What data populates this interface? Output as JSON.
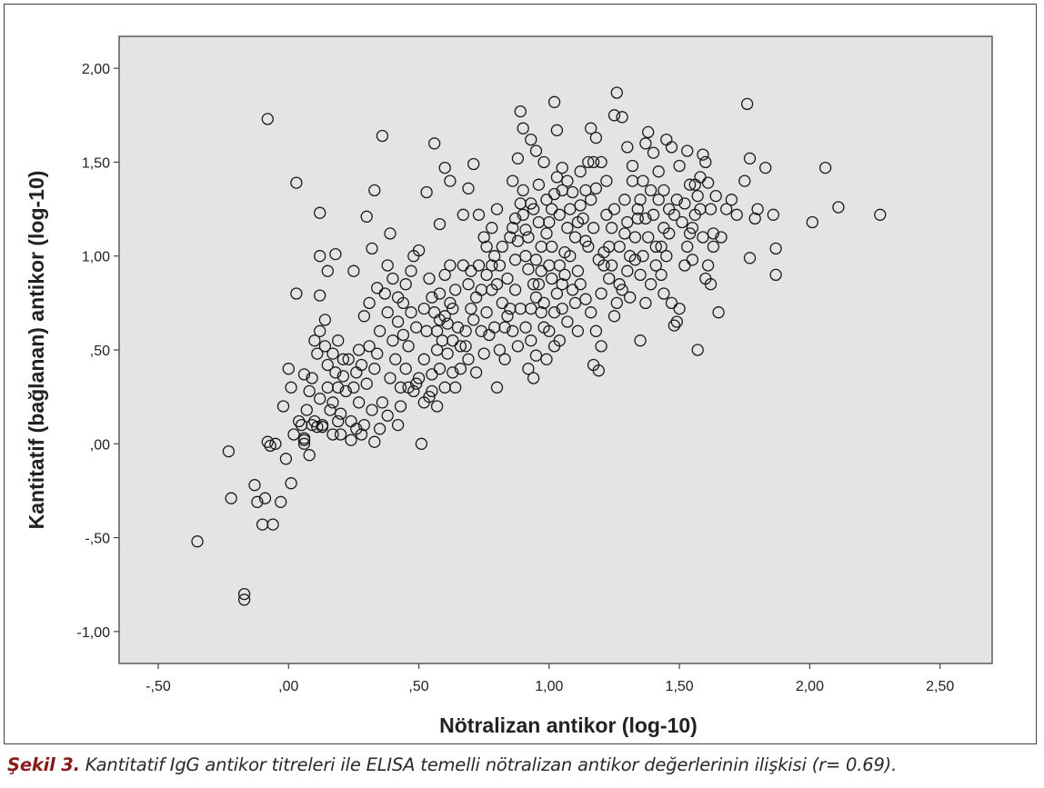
{
  "figure": {
    "caption_label": "Şekil 3.",
    "caption_text": " Kantitatif IgG antikor titreleri ile ELISA temelli nötralizan antikor değerlerinin ilişkisi (r= 0.69)."
  },
  "chart_data": {
    "type": "scatter",
    "title": "",
    "xlabel": "Nötralizan antikor (log-10)",
    "ylabel": "Kantitatif (bağlanan) antikor (log-10)",
    "xlim": [
      -0.65,
      2.7
    ],
    "ylim": [
      -1.17,
      2.17
    ],
    "x_ticks": [
      -0.5,
      0.0,
      0.5,
      1.0,
      1.5,
      2.0,
      2.5
    ],
    "x_tick_labels": [
      "-,50",
      ",00",
      ",50",
      "1,00",
      "1,50",
      "2,00",
      "2,50"
    ],
    "y_ticks": [
      -1.0,
      -0.5,
      0.0,
      0.5,
      1.0,
      1.5,
      2.0
    ],
    "y_tick_labels": [
      "-1,00",
      "-,50",
      ",00",
      ",50",
      "1,00",
      "1,50",
      "2,00"
    ],
    "grid": false,
    "legend": "none",
    "colors": {
      "plot_background": "#e4e4e4",
      "marker_stroke": "#1a1a1a",
      "frame": "#444444"
    },
    "points": [
      [
        -0.35,
        -0.52
      ],
      [
        -0.17,
        -0.8
      ],
      [
        -0.17,
        -0.83
      ],
      [
        -0.23,
        -0.04
      ],
      [
        -0.22,
        -0.29
      ],
      [
        -0.13,
        -0.22
      ],
      [
        -0.12,
        -0.31
      ],
      [
        -0.09,
        -0.29
      ],
      [
        -0.1,
        -0.43
      ],
      [
        -0.06,
        -0.43
      ],
      [
        -0.03,
        -0.31
      ],
      [
        -0.01,
        -0.08
      ],
      [
        0.01,
        -0.21
      ],
      [
        -0.08,
        0.01
      ],
      [
        -0.07,
        -0.01
      ],
      [
        -0.05,
        0.0
      ],
      [
        -0.08,
        1.73
      ],
      [
        0.03,
        1.39
      ],
      [
        0.06,
        0.03
      ],
      [
        0.08,
        -0.06
      ],
      [
        0.06,
        0.0
      ],
      [
        0.04,
        0.12
      ],
      [
        0.02,
        0.05
      ],
      [
        0.09,
        0.1
      ],
      [
        0.1,
        0.12
      ],
      [
        0.13,
        0.09
      ],
      [
        0.12,
        0.24
      ],
      [
        0.15,
        0.3
      ],
      [
        0.17,
        0.22
      ],
      [
        0.2,
        0.16
      ],
      [
        -0.02,
        0.2
      ],
      [
        0.01,
        0.3
      ],
      [
        0.0,
        0.4
      ],
      [
        0.06,
        0.37
      ],
      [
        0.03,
        0.8
      ],
      [
        0.12,
        0.79
      ],
      [
        0.12,
        1.0
      ],
      [
        0.15,
        0.92
      ],
      [
        0.18,
        1.01
      ],
      [
        0.12,
        1.23
      ],
      [
        0.1,
        0.55
      ],
      [
        0.14,
        0.66
      ],
      [
        0.17,
        0.48
      ],
      [
        0.19,
        0.55
      ],
      [
        0.21,
        0.36
      ],
      [
        0.23,
        0.45
      ],
      [
        0.25,
        0.3
      ],
      [
        0.27,
        0.5
      ],
      [
        0.29,
        0.68
      ],
      [
        0.31,
        0.75
      ],
      [
        0.25,
        0.92
      ],
      [
        0.32,
        1.04
      ],
      [
        0.3,
        1.21
      ],
      [
        0.33,
        1.35
      ],
      [
        0.36,
        1.64
      ],
      [
        0.39,
        1.12
      ],
      [
        0.34,
        0.83
      ],
      [
        0.38,
        0.7
      ],
      [
        0.4,
        0.55
      ],
      [
        0.42,
        0.65
      ],
      [
        0.44,
        0.75
      ],
      [
        0.45,
        0.85
      ],
      [
        0.47,
        0.92
      ],
      [
        0.48,
        1.0
      ],
      [
        0.5,
        1.03
      ],
      [
        0.41,
        0.45
      ],
      [
        0.43,
        0.3
      ],
      [
        0.45,
        0.4
      ],
      [
        0.48,
        0.28
      ],
      [
        0.5,
        0.35
      ],
      [
        0.52,
        0.45
      ],
      [
        0.55,
        0.37
      ],
      [
        0.57,
        0.5
      ],
      [
        0.53,
        0.6
      ],
      [
        0.56,
        0.7
      ],
      [
        0.58,
        0.8
      ],
      [
        0.6,
        0.9
      ],
      [
        0.62,
        0.95
      ],
      [
        0.63,
        0.72
      ],
      [
        0.65,
        0.62
      ],
      [
        0.51,
        0.0
      ],
      [
        0.54,
        0.25
      ],
      [
        0.57,
        0.2
      ],
      [
        0.6,
        0.3
      ],
      [
        0.63,
        0.38
      ],
      [
        0.66,
        0.52
      ],
      [
        0.68,
        0.6
      ],
      [
        0.7,
        0.72
      ],
      [
        0.72,
        0.78
      ],
      [
        0.74,
        0.82
      ],
      [
        0.53,
        1.34
      ],
      [
        0.56,
        1.6
      ],
      [
        0.58,
        1.17
      ],
      [
        0.6,
        1.47
      ],
      [
        0.62,
        1.4
      ],
      [
        0.67,
        1.22
      ],
      [
        0.69,
        1.36
      ],
      [
        0.71,
        1.49
      ],
      [
        0.73,
        1.22
      ],
      [
        0.75,
        1.1
      ],
      [
        0.76,
        0.9
      ],
      [
        0.78,
        0.95
      ],
      [
        0.79,
        1.0
      ],
      [
        0.8,
        0.85
      ],
      [
        0.82,
        0.75
      ],
      [
        0.84,
        0.68
      ],
      [
        0.86,
        0.6
      ],
      [
        0.88,
        0.52
      ],
      [
        0.8,
        0.3
      ],
      [
        0.83,
        0.45
      ],
      [
        0.85,
        1.1
      ],
      [
        0.87,
        1.2
      ],
      [
        0.89,
        1.28
      ],
      [
        0.9,
        1.35
      ],
      [
        0.86,
        1.4
      ],
      [
        0.88,
        1.52
      ],
      [
        0.9,
        1.68
      ],
      [
        0.89,
        1.77
      ],
      [
        0.93,
        1.62
      ],
      [
        0.95,
        1.56
      ],
      [
        0.91,
        1.0
      ],
      [
        0.92,
        0.93
      ],
      [
        0.94,
        0.85
      ],
      [
        0.95,
        0.78
      ],
      [
        0.97,
        0.7
      ],
      [
        0.98,
        0.62
      ],
      [
        0.93,
        0.55
      ],
      [
        0.95,
        0.47
      ],
      [
        0.92,
        0.4
      ],
      [
        0.94,
        0.35
      ],
      [
        0.97,
        1.05
      ],
      [
        0.99,
        1.12
      ],
      [
        1.0,
        1.18
      ],
      [
        1.01,
        1.25
      ],
      [
        1.02,
        1.33
      ],
      [
        1.03,
        1.42
      ],
      [
        1.02,
        1.82
      ],
      [
        1.03,
        1.67
      ],
      [
        1.05,
        1.47
      ],
      [
        1.0,
        0.95
      ],
      [
        1.01,
        0.88
      ],
      [
        1.03,
        0.8
      ],
      [
        1.05,
        0.72
      ],
      [
        1.07,
        0.65
      ],
      [
        1.0,
        0.6
      ],
      [
        1.02,
        0.52
      ],
      [
        0.99,
        0.45
      ],
      [
        1.04,
        0.55
      ],
      [
        1.06,
        0.9
      ],
      [
        1.08,
        1.0
      ],
      [
        1.1,
        1.1
      ],
      [
        1.11,
        1.18
      ],
      [
        1.12,
        1.27
      ],
      [
        1.14,
        1.35
      ],
      [
        1.15,
        1.5
      ],
      [
        1.16,
        1.68
      ],
      [
        1.18,
        1.63
      ],
      [
        1.2,
        1.5
      ],
      [
        1.22,
        1.4
      ],
      [
        1.12,
        0.85
      ],
      [
        1.14,
        0.77
      ],
      [
        1.16,
        0.7
      ],
      [
        1.18,
        0.6
      ],
      [
        1.17,
        0.42
      ],
      [
        1.19,
        0.39
      ],
      [
        1.2,
        0.52
      ],
      [
        1.21,
        0.95
      ],
      [
        1.23,
        1.05
      ],
      [
        1.24,
        1.15
      ],
      [
        1.25,
        1.25
      ],
      [
        1.26,
        1.87
      ],
      [
        1.25,
        1.75
      ],
      [
        1.28,
        1.74
      ],
      [
        1.3,
        1.58
      ],
      [
        1.32,
        1.48
      ],
      [
        1.26,
        0.75
      ],
      [
        1.28,
        0.82
      ],
      [
        1.3,
        0.92
      ],
      [
        1.31,
        1.0
      ],
      [
        1.33,
        1.1
      ],
      [
        1.34,
        1.2
      ],
      [
        1.35,
        1.3
      ],
      [
        1.36,
        1.4
      ],
      [
        1.37,
        1.6
      ],
      [
        1.38,
        1.66
      ],
      [
        1.4,
        1.55
      ],
      [
        1.42,
        1.45
      ],
      [
        1.35,
        0.55
      ],
      [
        1.37,
        0.75
      ],
      [
        1.39,
        0.85
      ],
      [
        1.41,
        0.95
      ],
      [
        1.43,
        1.05
      ],
      [
        1.44,
        1.15
      ],
      [
        1.46,
        1.25
      ],
      [
        1.45,
        1.62
      ],
      [
        1.47,
        1.58
      ],
      [
        1.5,
        1.48
      ],
      [
        1.44,
        1.35
      ],
      [
        1.48,
        0.63
      ],
      [
        1.49,
        0.65
      ],
      [
        1.5,
        0.72
      ],
      [
        1.47,
        0.75
      ],
      [
        1.52,
        0.95
      ],
      [
        1.53,
        1.05
      ],
      [
        1.55,
        1.15
      ],
      [
        1.56,
        1.22
      ],
      [
        1.57,
        1.32
      ],
      [
        1.58,
        1.42
      ],
      [
        1.6,
        1.5
      ],
      [
        1.53,
        1.56
      ],
      [
        1.57,
        0.5
      ],
      [
        1.6,
        0.88
      ],
      [
        1.62,
        0.85
      ],
      [
        1.63,
        1.05
      ],
      [
        1.65,
        0.7
      ],
      [
        1.66,
        1.1
      ],
      [
        1.68,
        1.25
      ],
      [
        1.7,
        1.3
      ],
      [
        1.72,
        1.22
      ],
      [
        1.75,
        1.4
      ],
      [
        1.76,
        1.81
      ],
      [
        1.77,
        1.52
      ],
      [
        1.79,
        1.2
      ],
      [
        1.8,
        1.25
      ],
      [
        1.77,
        0.99
      ],
      [
        1.83,
        1.47
      ],
      [
        1.86,
        1.22
      ],
      [
        1.87,
        1.04
      ],
      [
        1.87,
        0.9
      ],
      [
        2.01,
        1.18
      ],
      [
        2.06,
        1.47
      ],
      [
        2.11,
        1.26
      ],
      [
        2.27,
        1.22
      ],
      [
        1.59,
        1.54
      ],
      [
        1.61,
        1.39
      ],
      [
        1.63,
        1.12
      ],
      [
        1.54,
        1.38
      ],
      [
        1.42,
        1.3
      ],
      [
        1.38,
        1.1
      ],
      [
        1.33,
        0.98
      ],
      [
        1.29,
        1.12
      ],
      [
        1.23,
        0.88
      ],
      [
        1.19,
        0.98
      ],
      [
        1.15,
        1.05
      ],
      [
        1.11,
        0.92
      ],
      [
        1.09,
        0.82
      ],
      [
        1.07,
        1.15
      ],
      [
        1.04,
        1.22
      ],
      [
        1.01,
        1.05
      ],
      [
        0.97,
        0.92
      ],
      [
        0.96,
        1.18
      ],
      [
        0.93,
        1.28
      ],
      [
        0.91,
        1.14
      ],
      [
        0.87,
        0.98
      ],
      [
        0.84,
        0.88
      ],
      [
        0.81,
        0.95
      ],
      [
        0.78,
        0.82
      ],
      [
        0.76,
        0.7
      ],
      [
        0.74,
        0.6
      ],
      [
        0.71,
        0.66
      ],
      [
        0.69,
        0.85
      ],
      [
        0.67,
        0.95
      ],
      [
        0.64,
        0.82
      ],
      [
        0.62,
        0.75
      ],
      [
        0.61,
        0.64
      ],
      [
        0.59,
        0.55
      ],
      [
        0.58,
        0.66
      ],
      [
        0.55,
        0.78
      ],
      [
        0.54,
        0.88
      ],
      [
        0.52,
        0.72
      ],
      [
        0.49,
        0.62
      ],
      [
        0.47,
        0.7
      ],
      [
        0.46,
        0.52
      ],
      [
        0.44,
        0.58
      ],
      [
        0.42,
        0.78
      ],
      [
        0.4,
        0.88
      ],
      [
        0.38,
        0.95
      ],
      [
        0.37,
        0.8
      ],
      [
        0.35,
        0.6
      ],
      [
        0.34,
        0.48
      ],
      [
        0.33,
        0.4
      ],
      [
        0.31,
        0.52
      ],
      [
        0.3,
        0.32
      ],
      [
        0.28,
        0.42
      ],
      [
        0.27,
        0.22
      ],
      [
        0.26,
        0.38
      ],
      [
        0.24,
        0.12
      ],
      [
        0.22,
        0.28
      ],
      [
        0.21,
        0.45
      ],
      [
        0.19,
        0.3
      ],
      [
        0.18,
        0.38
      ],
      [
        0.16,
        0.18
      ],
      [
        0.15,
        0.42
      ],
      [
        0.14,
        0.52
      ],
      [
        0.12,
        0.6
      ],
      [
        0.11,
        0.48
      ],
      [
        0.09,
        0.35
      ],
      [
        0.08,
        0.28
      ],
      [
        0.07,
        0.18
      ],
      [
        0.05,
        0.1
      ],
      [
        0.13,
        0.1
      ],
      [
        0.2,
        0.05
      ],
      [
        0.26,
        0.08
      ],
      [
        0.29,
        0.1
      ],
      [
        0.33,
        0.01
      ],
      [
        0.36,
        0.22
      ],
      [
        0.39,
        0.35
      ],
      [
        0.43,
        0.2
      ],
      [
        0.46,
        0.3
      ],
      [
        0.49,
        0.32
      ],
      [
        0.52,
        0.22
      ],
      [
        0.55,
        0.28
      ],
      [
        0.58,
        0.4
      ],
      [
        0.61,
        0.48
      ],
      [
        0.64,
        0.3
      ],
      [
        0.66,
        0.4
      ],
      [
        0.69,
        0.45
      ],
      [
        0.72,
        0.38
      ],
      [
        0.75,
        0.48
      ],
      [
        0.77,
        0.58
      ],
      [
        0.79,
        0.62
      ],
      [
        0.81,
        0.5
      ],
      [
        0.83,
        0.62
      ],
      [
        0.85,
        0.72
      ],
      [
        0.87,
        0.82
      ],
      [
        0.89,
        0.72
      ],
      [
        0.91,
        0.62
      ],
      [
        0.93,
        0.72
      ],
      [
        0.95,
        0.98
      ],
      [
        0.96,
        0.85
      ],
      [
        0.98,
        0.75
      ],
      [
        0.99,
        1.3
      ],
      [
        1.02,
        0.7
      ],
      [
        1.04,
        0.95
      ],
      [
        1.06,
        1.02
      ],
      [
        1.08,
        1.25
      ],
      [
        1.09,
        1.34
      ],
      [
        1.1,
        0.75
      ],
      [
        1.11,
        0.6
      ],
      [
        1.13,
        1.2
      ],
      [
        1.14,
        1.08
      ],
      [
        1.16,
        1.3
      ],
      [
        1.17,
        1.15
      ],
      [
        1.18,
        1.36
      ],
      [
        1.2,
        0.8
      ],
      [
        1.21,
        1.02
      ],
      [
        1.22,
        1.22
      ],
      [
        1.24,
        0.95
      ],
      [
        1.25,
        0.68
      ],
      [
        1.27,
        0.85
      ],
      [
        1.27,
        1.05
      ],
      [
        1.29,
        1.3
      ],
      [
        1.3,
        1.18
      ],
      [
        1.31,
        0.78
      ],
      [
        1.32,
        1.4
      ],
      [
        1.34,
        1.25
      ],
      [
        1.35,
        0.9
      ],
      [
        1.36,
        1.0
      ],
      [
        1.37,
        1.2
      ],
      [
        1.39,
        1.35
      ],
      [
        1.4,
        1.22
      ],
      [
        1.41,
        1.05
      ],
      [
        1.43,
        0.9
      ],
      [
        1.44,
        0.8
      ],
      [
        1.45,
        1.0
      ],
      [
        1.46,
        1.12
      ],
      [
        1.48,
        1.22
      ],
      [
        1.49,
        1.3
      ],
      [
        1.51,
        1.18
      ],
      [
        1.52,
        1.28
      ],
      [
        1.54,
        1.12
      ],
      [
        1.55,
        0.98
      ],
      [
        1.56,
        1.38
      ],
      [
        1.58,
        1.25
      ],
      [
        1.59,
        1.1
      ],
      [
        1.61,
        0.95
      ],
      [
        1.62,
        1.25
      ],
      [
        1.64,
        1.32
      ],
      [
        0.57,
        0.6
      ],
      [
        0.6,
        0.68
      ],
      [
        0.63,
        0.55
      ],
      [
        0.68,
        0.52
      ],
      [
        0.7,
        0.92
      ],
      [
        0.73,
        0.95
      ],
      [
        0.76,
        1.05
      ],
      [
        0.78,
        1.15
      ],
      [
        0.8,
        1.25
      ],
      [
        0.82,
        1.05
      ],
      [
        0.86,
        1.15
      ],
      [
        0.88,
        1.08
      ],
      [
        0.9,
        1.22
      ],
      [
        0.92,
        1.1
      ],
      [
        0.94,
        1.25
      ],
      [
        0.96,
        1.38
      ],
      [
        0.98,
        1.5
      ],
      [
        1.05,
        1.35
      ],
      [
        1.07,
        1.4
      ],
      [
        1.12,
        1.45
      ],
      [
        1.17,
        1.5
      ],
      [
        1.05,
        0.85
      ],
      [
        0.42,
        0.1
      ],
      [
        0.38,
        0.15
      ],
      [
        0.35,
        0.08
      ],
      [
        0.32,
        0.18
      ],
      [
        0.28,
        0.05
      ],
      [
        0.24,
        0.02
      ],
      [
        0.19,
        0.12
      ],
      [
        0.17,
        0.05
      ],
      [
        0.11,
        0.09
      ],
      [
        0.06,
        0.02
      ]
    ]
  }
}
